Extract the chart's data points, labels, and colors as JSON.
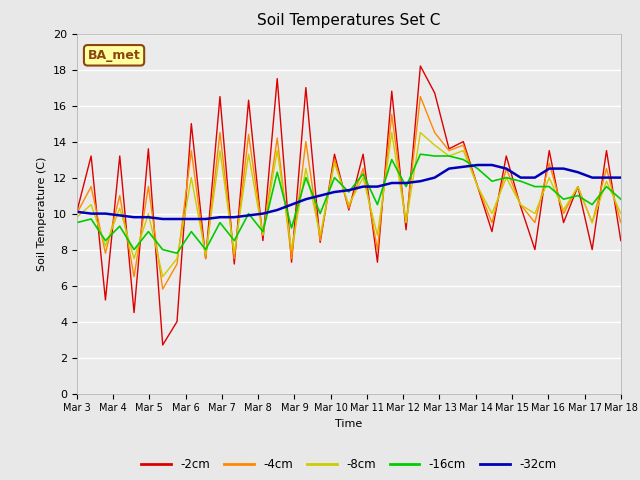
{
  "title": "Soil Temperatures Set C",
  "xlabel": "Time",
  "ylabel": "Soil Temperature (C)",
  "ylim": [
    0,
    20
  ],
  "fig_bg": "#e8e8e8",
  "plot_bg": "#ebebeb",
  "annotation_text": "BA_met",
  "annotation_bg": "#ffffa0",
  "annotation_border": "#8b4513",
  "series_colors": {
    "-2cm": "#dd0000",
    "-4cm": "#ff8800",
    "-8cm": "#cccc00",
    "-16cm": "#00cc00",
    "-32cm": "#0000bb"
  },
  "xtick_labels": [
    "Mar 3",
    "Mar 4",
    "Mar 5",
    "Mar 6",
    "Mar 7",
    "Mar 8",
    "Mar 9",
    "Mar 10",
    "Mar 11",
    "Mar 12",
    "Mar 13",
    "Mar 14",
    "Mar 15",
    "Mar 16",
    "Mar 17",
    "Mar 18"
  ],
  "data_2cm": [
    10.1,
    13.2,
    5.2,
    13.2,
    4.5,
    13.6,
    2.7,
    4.0,
    15.0,
    7.5,
    16.5,
    7.2,
    16.3,
    8.5,
    17.5,
    7.3,
    17.0,
    8.4,
    13.3,
    10.2,
    13.3,
    7.3,
    16.8,
    9.1,
    18.2,
    16.7,
    13.6,
    14.0,
    11.5,
    9.0,
    13.2,
    10.4,
    8.0,
    13.5,
    9.5,
    11.5,
    8.0,
    13.5,
    8.5
  ],
  "data_4cm": [
    10.0,
    11.5,
    7.8,
    11.0,
    6.5,
    11.5,
    5.8,
    7.2,
    13.5,
    7.5,
    14.5,
    7.5,
    14.4,
    8.8,
    14.2,
    7.5,
    14.0,
    8.5,
    13.0,
    10.3,
    12.5,
    8.0,
    15.5,
    9.5,
    16.5,
    14.5,
    13.5,
    13.8,
    11.5,
    9.5,
    12.5,
    10.5,
    9.5,
    12.8,
    10.0,
    11.5,
    9.5,
    12.5,
    9.5
  ],
  "data_8cm": [
    9.8,
    10.5,
    8.2,
    10.3,
    7.5,
    10.0,
    6.5,
    7.5,
    12.0,
    7.7,
    13.5,
    7.8,
    13.3,
    8.8,
    13.5,
    8.0,
    12.5,
    8.8,
    12.8,
    10.5,
    12.0,
    8.8,
    14.5,
    9.5,
    14.5,
    13.8,
    13.2,
    13.5,
    11.5,
    10.0,
    12.0,
    10.5,
    10.0,
    12.0,
    10.2,
    11.5,
    9.5,
    11.8,
    10.0
  ],
  "data_16cm": [
    9.5,
    9.7,
    8.5,
    9.3,
    8.0,
    9.0,
    8.0,
    7.8,
    9.0,
    8.0,
    9.5,
    8.5,
    10.0,
    9.0,
    12.3,
    9.2,
    12.0,
    10.0,
    12.0,
    11.2,
    12.2,
    10.5,
    13.0,
    11.5,
    13.3,
    13.2,
    13.2,
    13.0,
    12.5,
    11.8,
    12.0,
    11.8,
    11.5,
    11.5,
    10.8,
    11.0,
    10.5,
    11.5,
    10.8
  ],
  "data_32cm": [
    10.1,
    10.0,
    10.0,
    9.9,
    9.8,
    9.8,
    9.7,
    9.7,
    9.7,
    9.7,
    9.8,
    9.8,
    9.9,
    10.0,
    10.2,
    10.5,
    10.8,
    11.0,
    11.2,
    11.3,
    11.5,
    11.5,
    11.7,
    11.7,
    11.8,
    12.0,
    12.5,
    12.6,
    12.7,
    12.7,
    12.5,
    12.0,
    12.0,
    12.5,
    12.5,
    12.3,
    12.0,
    12.0,
    12.0
  ]
}
